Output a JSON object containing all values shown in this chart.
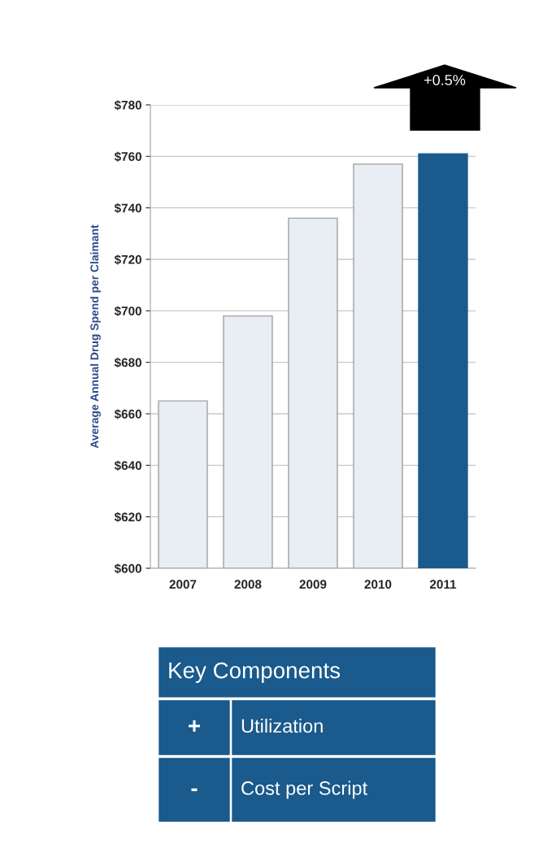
{
  "chart_data": {
    "type": "bar",
    "categories": [
      "2007",
      "2008",
      "2009",
      "2010",
      "2011"
    ],
    "values": [
      665,
      698,
      736,
      757,
      761
    ],
    "colors": [
      "#e8eef3",
      "#e8eef3",
      "#e8eef3",
      "#e8eef3",
      "#1a5a8c"
    ],
    "ylabel": "Average Annual Drug Spend per Claimant",
    "ylim": [
      600,
      780
    ],
    "yticks": [
      {
        "value": 600,
        "label": "$600"
      },
      {
        "value": 620,
        "label": "$620"
      },
      {
        "value": 640,
        "label": "$640"
      },
      {
        "value": 660,
        "label": "$660"
      },
      {
        "value": 680,
        "label": "$680"
      },
      {
        "value": 700,
        "label": "$700"
      },
      {
        "value": 720,
        "label": "$720"
      },
      {
        "value": 740,
        "label": "$740"
      },
      {
        "value": 760,
        "label": "$760"
      },
      {
        "value": 780,
        "label": "$780"
      }
    ],
    "grid": "y",
    "annotations": [
      "+0.5%",
      "Key Components",
      "+",
      "Utilization",
      "-",
      "Cost per Script"
    ]
  }
}
